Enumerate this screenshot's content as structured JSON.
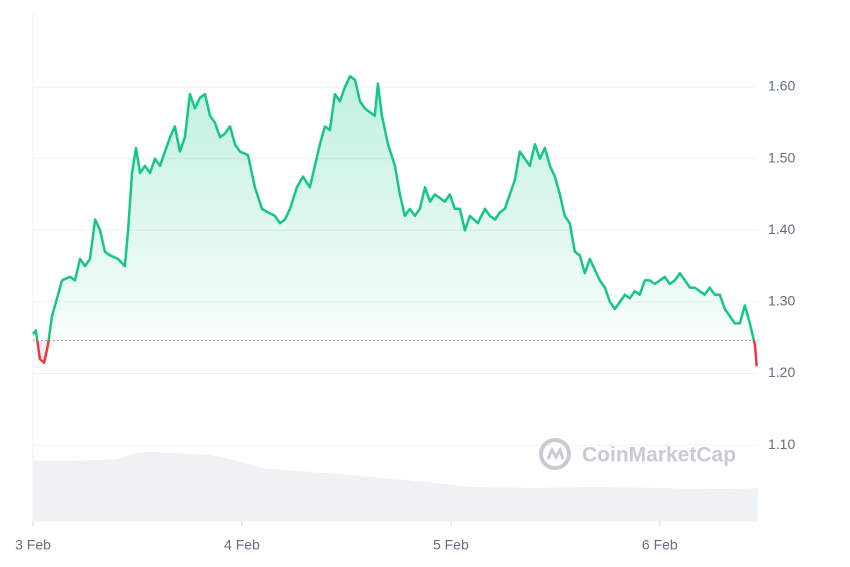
{
  "chart_data": {
    "type": "line",
    "watermark": "CoinMarketCap",
    "x": [
      0,
      0.014,
      0.033,
      0.053,
      0.072,
      0.091,
      0.11,
      0.139,
      0.177,
      0.201,
      0.225,
      0.249,
      0.273,
      0.297,
      0.321,
      0.344,
      0.368,
      0.407,
      0.44,
      0.455,
      0.474,
      0.493,
      0.512,
      0.536,
      0.56,
      0.584,
      0.608,
      0.632,
      0.656,
      0.679,
      0.703,
      0.727,
      0.751,
      0.775,
      0.799,
      0.823,
      0.847,
      0.871,
      0.895,
      0.919,
      0.943,
      0.967,
      0.99,
      1.029,
      1.062,
      1.096,
      1.124,
      1.158,
      1.182,
      1.206,
      1.23,
      1.263,
      1.292,
      1.325,
      1.349,
      1.373,
      1.397,
      1.421,
      1.445,
      1.469,
      1.493,
      1.517,
      1.541,
      1.565,
      1.589,
      1.612,
      1.636,
      1.651,
      1.67,
      1.699,
      1.732,
      1.756,
      1.78,
      1.804,
      1.828,
      1.852,
      1.876,
      1.9,
      1.923,
      1.947,
      1.971,
      1.995,
      2.019,
      2.043,
      2.067,
      2.091,
      2.129,
      2.163,
      2.187,
      2.211,
      2.234,
      2.258,
      2.282,
      2.306,
      2.33,
      2.354,
      2.378,
      2.402,
      2.426,
      2.45,
      2.474,
      2.498,
      2.522,
      2.545,
      2.569,
      2.593,
      2.617,
      2.641,
      2.665,
      2.689,
      2.713,
      2.737,
      2.761,
      2.785,
      2.809,
      2.833,
      2.856,
      2.88,
      2.904,
      2.928,
      2.952,
      2.976,
      3.0,
      3.024,
      3.048,
      3.072,
      3.096,
      3.12,
      3.144,
      3.167,
      3.191,
      3.215,
      3.239,
      3.263,
      3.287,
      3.311,
      3.335,
      3.359,
      3.383,
      3.407,
      3.431,
      3.455,
      3.464
    ],
    "series": [
      {
        "name": "Price",
        "color": "#16c784",
        "below_color": "#ea3943",
        "values": [
          1.255,
          1.26,
          1.22,
          1.215,
          1.24,
          1.28,
          1.3,
          1.33,
          1.335,
          1.33,
          1.36,
          1.35,
          1.36,
          1.415,
          1.4,
          1.37,
          1.365,
          1.36,
          1.35,
          1.4,
          1.48,
          1.515,
          1.48,
          1.49,
          1.48,
          1.5,
          1.49,
          1.51,
          1.53,
          1.545,
          1.51,
          1.53,
          1.59,
          1.57,
          1.585,
          1.59,
          1.56,
          1.55,
          1.53,
          1.535,
          1.545,
          1.52,
          1.51,
          1.505,
          1.46,
          1.43,
          1.425,
          1.42,
          1.41,
          1.415,
          1.43,
          1.46,
          1.475,
          1.46,
          1.49,
          1.52,
          1.545,
          1.54,
          1.59,
          1.58,
          1.6,
          1.615,
          1.61,
          1.58,
          1.57,
          1.565,
          1.56,
          1.605,
          1.56,
          1.52,
          1.49,
          1.45,
          1.42,
          1.43,
          1.42,
          1.43,
          1.46,
          1.44,
          1.45,
          1.445,
          1.44,
          1.45,
          1.43,
          1.43,
          1.4,
          1.42,
          1.41,
          1.43,
          1.42,
          1.415,
          1.425,
          1.43,
          1.45,
          1.47,
          1.51,
          1.5,
          1.49,
          1.52,
          1.5,
          1.515,
          1.49,
          1.475,
          1.45,
          1.42,
          1.41,
          1.37,
          1.365,
          1.34,
          1.36,
          1.345,
          1.33,
          1.32,
          1.3,
          1.29,
          1.3,
          1.31,
          1.305,
          1.315,
          1.31,
          1.33,
          1.33,
          1.325,
          1.33,
          1.335,
          1.325,
          1.33,
          1.34,
          1.33,
          1.32,
          1.32,
          1.315,
          1.31,
          1.32,
          1.31,
          1.31,
          1.29,
          1.28,
          1.27,
          1.27,
          1.295,
          1.27,
          1.24,
          1.21
        ]
      }
    ],
    "baseline": 1.246,
    "volume": {
      "color": "#eff2f5",
      "x": [
        0,
        0.2,
        0.4,
        0.5,
        0.55,
        0.75,
        0.85,
        0.95,
        1.1,
        1.5,
        1.8,
        2.1,
        2.4,
        2.7,
        3.0,
        3.3,
        3.47
      ],
      "values": [
        55,
        55,
        56,
        62,
        63,
        61,
        60,
        56,
        48,
        42,
        37,
        31,
        30,
        31,
        30,
        29,
        30
      ],
      "ylim": [
        0,
        100
      ]
    },
    "xlim": [
      0,
      3.47
    ],
    "xticks": [
      {
        "value": 0,
        "label": "3 Feb"
      },
      {
        "value": 1,
        "label": "4 Feb"
      },
      {
        "value": 2,
        "label": "5 Feb"
      },
      {
        "value": 3,
        "label": "6 Feb"
      }
    ],
    "ylim": [
      0.994,
      1.702
    ],
    "yticks": [
      {
        "value": 1.1,
        "label": "1.10"
      },
      {
        "value": 1.2,
        "label": "1.20"
      },
      {
        "value": 1.3,
        "label": "1.30"
      },
      {
        "value": 1.4,
        "label": "1.40"
      },
      {
        "value": 1.5,
        "label": "1.50"
      },
      {
        "value": 1.6,
        "label": "1.60"
      }
    ],
    "grid": true
  }
}
